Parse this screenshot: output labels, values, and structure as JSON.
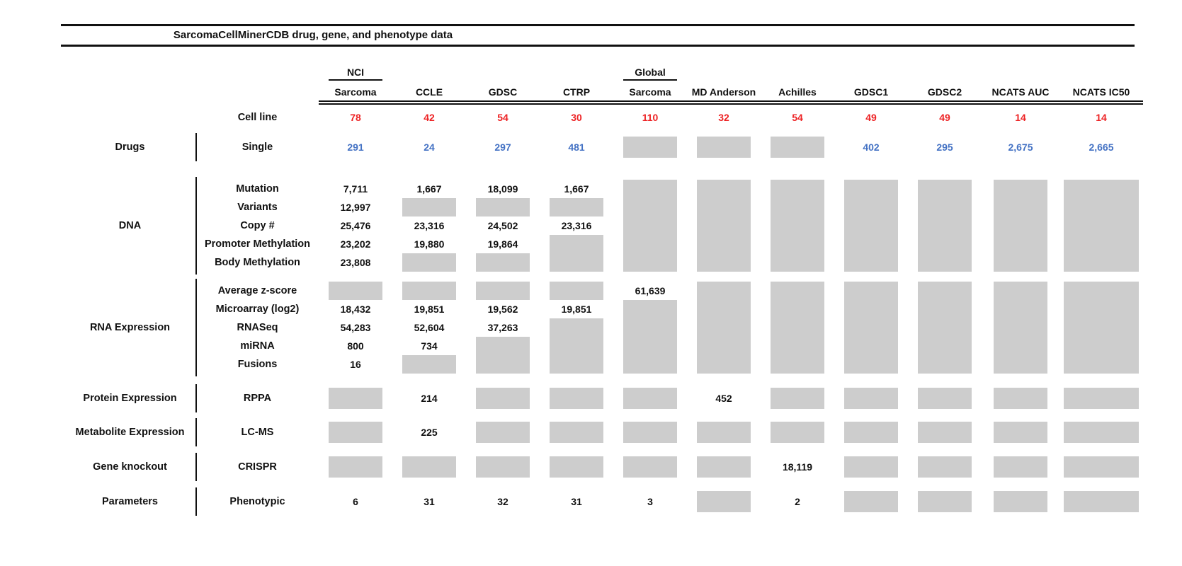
{
  "colors": {
    "count_red": "#ed2224",
    "count_blue": "#4472c4",
    "missing_gray": "#cdcdcd"
  },
  "chart_data": {
    "type": "table",
    "title": "SarcomaCellMinerCDB drug, gene, and phenotype data",
    "cell_line_label": "Cell line",
    "columns": [
      {
        "group": "NCI",
        "label": "Sarcoma",
        "cell_lines": "78"
      },
      {
        "group": "",
        "label": "CCLE",
        "cell_lines": "42"
      },
      {
        "group": "",
        "label": "GDSC",
        "cell_lines": "54"
      },
      {
        "group": "",
        "label": "CTRP",
        "cell_lines": "30"
      },
      {
        "group": "Global",
        "label": "Sarcoma",
        "cell_lines": "110"
      },
      {
        "group": "",
        "label": "MD Anderson",
        "cell_lines": "32"
      },
      {
        "group": "",
        "label": "Achilles",
        "cell_lines": "54"
      },
      {
        "group": "",
        "label": "GDSC1",
        "cell_lines": "49"
      },
      {
        "group": "",
        "label": "GDSC2",
        "cell_lines": "49"
      },
      {
        "group": "",
        "label": "NCATS AUC",
        "cell_lines": "14"
      },
      {
        "group": "",
        "label": "NCATS IC50",
        "cell_lines": "14"
      }
    ],
    "sections": [
      {
        "id": "drugs",
        "category": "Drugs",
        "rows": [
          {
            "label": "Single",
            "color": "blue",
            "values": [
              "291",
              "24",
              "297",
              "481",
              null,
              null,
              null,
              "402",
              "295",
              "2,675",
              "2,665"
            ]
          }
        ]
      },
      {
        "id": "dna",
        "category": "DNA",
        "rows": [
          {
            "label": "Mutation",
            "values": [
              "7,711",
              "1,667",
              "18,099",
              "1,667",
              null,
              null,
              null,
              null,
              null,
              null,
              null
            ]
          },
          {
            "label": "Variants",
            "values": [
              "12,997",
              null,
              null,
              null,
              null,
              null,
              null,
              null,
              null,
              null,
              null
            ]
          },
          {
            "label": "Copy #",
            "values": [
              "25,476",
              "23,316",
              "24,502",
              "23,316",
              null,
              null,
              null,
              null,
              null,
              null,
              null
            ]
          },
          {
            "label": "Promoter Methylation",
            "values": [
              "23,202",
              "19,880",
              "19,864",
              null,
              null,
              null,
              null,
              null,
              null,
              null,
              null
            ]
          },
          {
            "label": "Body Methylation",
            "values": [
              "23,808",
              null,
              null,
              null,
              null,
              null,
              null,
              null,
              null,
              null,
              null
            ]
          }
        ]
      },
      {
        "id": "rna",
        "category": "RNA Expression",
        "rows": [
          {
            "label": "Average z-score",
            "values": [
              null,
              null,
              null,
              null,
              "61,639",
              null,
              null,
              null,
              null,
              null,
              null
            ]
          },
          {
            "label": "Microarray (log2)",
            "values": [
              "18,432",
              "19,851",
              "19,562",
              "19,851",
              null,
              null,
              null,
              null,
              null,
              null,
              null
            ]
          },
          {
            "label": "RNASeq",
            "values": [
              "54,283",
              "52,604",
              "37,263",
              null,
              null,
              null,
              null,
              null,
              null,
              null,
              null
            ]
          },
          {
            "label": "miRNA",
            "values": [
              "800",
              "734",
              null,
              null,
              null,
              null,
              null,
              null,
              null,
              null,
              null
            ]
          },
          {
            "label": "Fusions",
            "values": [
              "16",
              null,
              null,
              null,
              null,
              null,
              null,
              null,
              null,
              null,
              null
            ]
          }
        ]
      },
      {
        "id": "protein",
        "category": "Protein Expression",
        "rows": [
          {
            "label": "RPPA",
            "values": [
              null,
              "214",
              null,
              null,
              null,
              "452",
              null,
              null,
              null,
              null,
              null
            ]
          }
        ]
      },
      {
        "id": "metabolite",
        "category": "Metabolite Expression",
        "rows": [
          {
            "label": "LC-MS",
            "values": [
              null,
              "225",
              null,
              null,
              null,
              null,
              null,
              null,
              null,
              null,
              null
            ]
          }
        ]
      },
      {
        "id": "knockout",
        "category": "Gene knockout",
        "rows": [
          {
            "label": "CRISPR",
            "values": [
              null,
              null,
              null,
              null,
              null,
              null,
              "18,119",
              null,
              null,
              null,
              null
            ]
          }
        ]
      },
      {
        "id": "parameters",
        "category": "Parameters",
        "rows": [
          {
            "label": "Phenotypic",
            "values": [
              "6",
              "31",
              "32",
              "31",
              "3",
              null,
              "2",
              null,
              null,
              null,
              null
            ]
          }
        ]
      }
    ]
  }
}
